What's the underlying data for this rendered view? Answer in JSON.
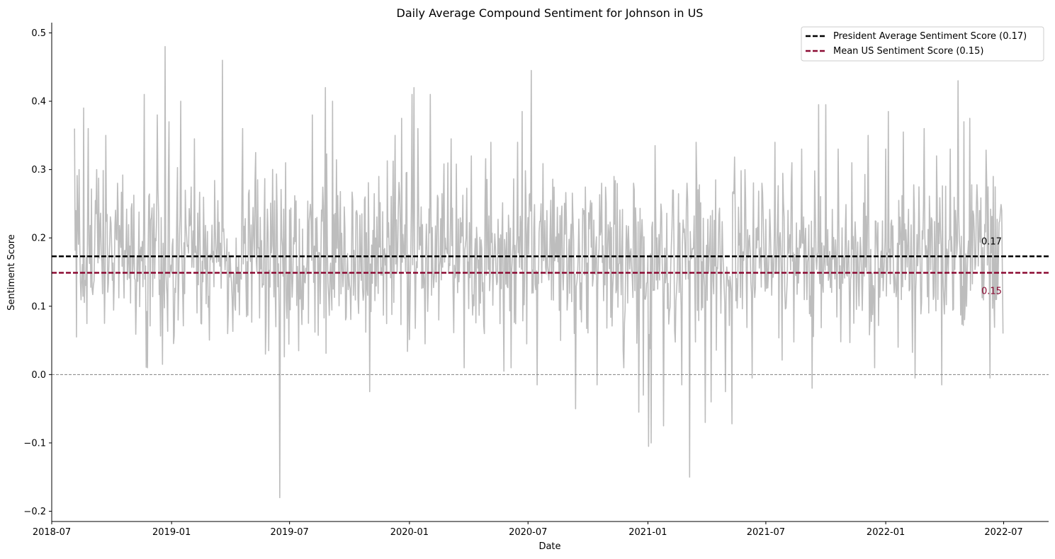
{
  "chart_data": {
    "type": "line",
    "title": "Daily Average Compound Sentiment for Johnson in US",
    "xlabel": "Date",
    "ylabel": "Sentiment Score",
    "xlim": [
      "2018-07-01",
      "2022-09-08"
    ],
    "ylim": [
      -0.215,
      0.515
    ],
    "x_ticks": [
      "2018-07",
      "2019-01",
      "2019-07",
      "2020-01",
      "2020-07",
      "2021-01",
      "2021-07",
      "2022-01",
      "2022-07"
    ],
    "y_ticks": [
      -0.2,
      -0.1,
      0.0,
      0.1,
      0.2,
      0.3,
      0.4,
      0.5
    ],
    "y_tick_labels": [
      "−0.2",
      "−0.1",
      "0.0",
      "0.1",
      "0.2",
      "0.3",
      "0.4",
      "0.5"
    ],
    "grid": false,
    "legend_position": "top-right",
    "series": [
      {
        "name": "Daily Average Compound Sentiment",
        "color": "#bdbdbd",
        "start_date": "2018-08-05",
        "end_date": "2022-06-30",
        "points": [
          [
            "2018-08-05",
            0.36
          ],
          [
            "2018-08-07",
            0.24
          ],
          [
            "2018-08-08",
            0.055
          ],
          [
            "2018-08-12",
            0.3
          ],
          [
            "2018-08-19",
            0.39
          ],
          [
            "2018-08-26",
            0.36
          ],
          [
            "2018-09-01",
            0.125
          ],
          [
            "2018-09-08",
            0.3
          ],
          [
            "2018-09-20",
            0.075
          ],
          [
            "2018-09-22",
            0.35
          ],
          [
            "2018-10-10",
            0.28
          ],
          [
            "2018-11-01",
            0.25
          ],
          [
            "2018-11-20",
            0.41
          ],
          [
            "2018-11-25",
            0.01
          ],
          [
            "2018-12-10",
            0.38
          ],
          [
            "2018-12-18",
            0.015
          ],
          [
            "2018-12-22",
            0.48
          ],
          [
            "2018-12-28",
            0.37
          ],
          [
            "2019-01-15",
            0.4
          ],
          [
            "2019-02-05",
            0.345
          ],
          [
            "2019-02-15",
            0.075
          ],
          [
            "2019-03-20",
            0.46
          ],
          [
            "2019-03-28",
            0.06
          ],
          [
            "2019-04-20",
            0.36
          ],
          [
            "2019-05-10",
            0.325
          ],
          [
            "2019-05-25",
            0.03
          ],
          [
            "2019-06-10",
            0.07
          ],
          [
            "2019-06-16",
            -0.18
          ],
          [
            "2019-06-25",
            0.31
          ],
          [
            "2019-07-15",
            0.035
          ],
          [
            "2019-08-05",
            0.38
          ],
          [
            "2019-08-25",
            0.42
          ],
          [
            "2019-09-05",
            0.4
          ],
          [
            "2019-09-25",
            0.08
          ],
          [
            "2019-10-25",
            0.26
          ],
          [
            "2019-11-01",
            -0.025
          ],
          [
            "2019-11-15",
            0.29
          ],
          [
            "2019-12-10",
            0.35
          ],
          [
            "2019-12-20",
            0.375
          ],
          [
            "2020-01-05",
            0.41
          ],
          [
            "2020-01-08",
            0.42
          ],
          [
            "2020-01-14",
            0.36
          ],
          [
            "2020-01-25",
            0.045
          ],
          [
            "2020-02-02",
            0.41
          ],
          [
            "2020-02-15",
            0.08
          ],
          [
            "2020-03-05",
            0.345
          ],
          [
            "2020-03-25",
            0.01
          ],
          [
            "2020-04-05",
            0.32
          ],
          [
            "2020-04-25",
            0.06
          ],
          [
            "2020-05-05",
            0.34
          ],
          [
            "2020-05-25",
            0.005
          ],
          [
            "2020-06-05",
            0.01
          ],
          [
            "2020-06-15",
            0.34
          ],
          [
            "2020-06-22",
            0.385
          ],
          [
            "2020-06-29",
            0.045
          ],
          [
            "2020-07-06",
            0.445
          ],
          [
            "2020-07-15",
            -0.015
          ],
          [
            "2020-08-05",
            0.255
          ],
          [
            "2020-08-20",
            0.05
          ],
          [
            "2020-09-05",
            0.22
          ],
          [
            "2020-09-12",
            -0.05
          ],
          [
            "2020-09-25",
            0.24
          ],
          [
            "2020-10-15",
            -0.015
          ],
          [
            "2020-10-22",
            0.28
          ],
          [
            "2020-11-10",
            0.29
          ],
          [
            "2020-11-25",
            0.01
          ],
          [
            "2020-12-10",
            0.28
          ],
          [
            "2020-12-18",
            -0.055
          ],
          [
            "2020-12-25",
            -0.03
          ],
          [
            "2021-01-02",
            -0.105
          ],
          [
            "2021-01-06",
            -0.1
          ],
          [
            "2021-01-12",
            0.335
          ],
          [
            "2021-01-25",
            -0.075
          ],
          [
            "2021-02-08",
            0.27
          ],
          [
            "2021-02-22",
            -0.015
          ],
          [
            "2021-03-02",
            0.28
          ],
          [
            "2021-03-06",
            -0.15
          ],
          [
            "2021-03-16",
            0.34
          ],
          [
            "2021-03-30",
            -0.07
          ],
          [
            "2021-04-08",
            -0.04
          ],
          [
            "2021-04-15",
            0.285
          ],
          [
            "2021-04-30",
            -0.025
          ],
          [
            "2021-05-10",
            -0.072
          ],
          [
            "2021-05-20",
            0.245
          ],
          [
            "2021-05-30",
            0.3
          ],
          [
            "2021-06-10",
            -0.005
          ],
          [
            "2021-06-25",
            0.28
          ],
          [
            "2021-07-05",
            0.15
          ],
          [
            "2021-07-15",
            0.34
          ],
          [
            "2021-08-10",
            0.31
          ],
          [
            "2021-08-25",
            0.33
          ],
          [
            "2021-09-10",
            -0.02
          ],
          [
            "2021-09-20",
            0.395
          ],
          [
            "2021-10-01",
            0.395
          ],
          [
            "2021-10-20",
            0.33
          ],
          [
            "2021-11-10",
            0.31
          ],
          [
            "2021-12-05",
            0.35
          ],
          [
            "2021-12-15",
            0.01
          ],
          [
            "2022-01-01",
            0.33
          ],
          [
            "2022-01-05",
            0.385
          ],
          [
            "2022-01-20",
            0.04
          ],
          [
            "2022-01-28",
            0.355
          ],
          [
            "2022-02-15",
            -0.005
          ],
          [
            "2022-03-01",
            0.36
          ],
          [
            "2022-03-20",
            0.32
          ],
          [
            "2022-03-28",
            -0.015
          ],
          [
            "2022-04-10",
            0.33
          ],
          [
            "2022-04-22",
            0.43
          ],
          [
            "2022-05-01",
            0.37
          ],
          [
            "2022-05-05",
            0.1
          ],
          [
            "2022-05-10",
            0.375
          ],
          [
            "2022-05-25",
            0.24
          ],
          [
            "2022-06-05",
            0.28
          ],
          [
            "2022-06-10",
            -0.005
          ],
          [
            "2022-06-15",
            0.29
          ],
          [
            "2022-06-20",
            0.11
          ],
          [
            "2022-06-25",
            0.225
          ],
          [
            "2022-06-28",
            0.24
          ],
          [
            "2022-06-30",
            0.06
          ]
        ]
      }
    ],
    "reference_lines": [
      {
        "name": "President Average Sentiment Score (0.17)",
        "value": 0.173,
        "label": "0.17",
        "color": "#000000",
        "style": "dashed"
      },
      {
        "name": "Mean US Sentiment Score (0.15)",
        "value": 0.149,
        "label": "0.15",
        "color": "#8b0a32",
        "style": "dashed"
      },
      {
        "name": "",
        "value": 0.0,
        "label": "",
        "color": "#808080",
        "style": "dashed-thin"
      }
    ]
  }
}
